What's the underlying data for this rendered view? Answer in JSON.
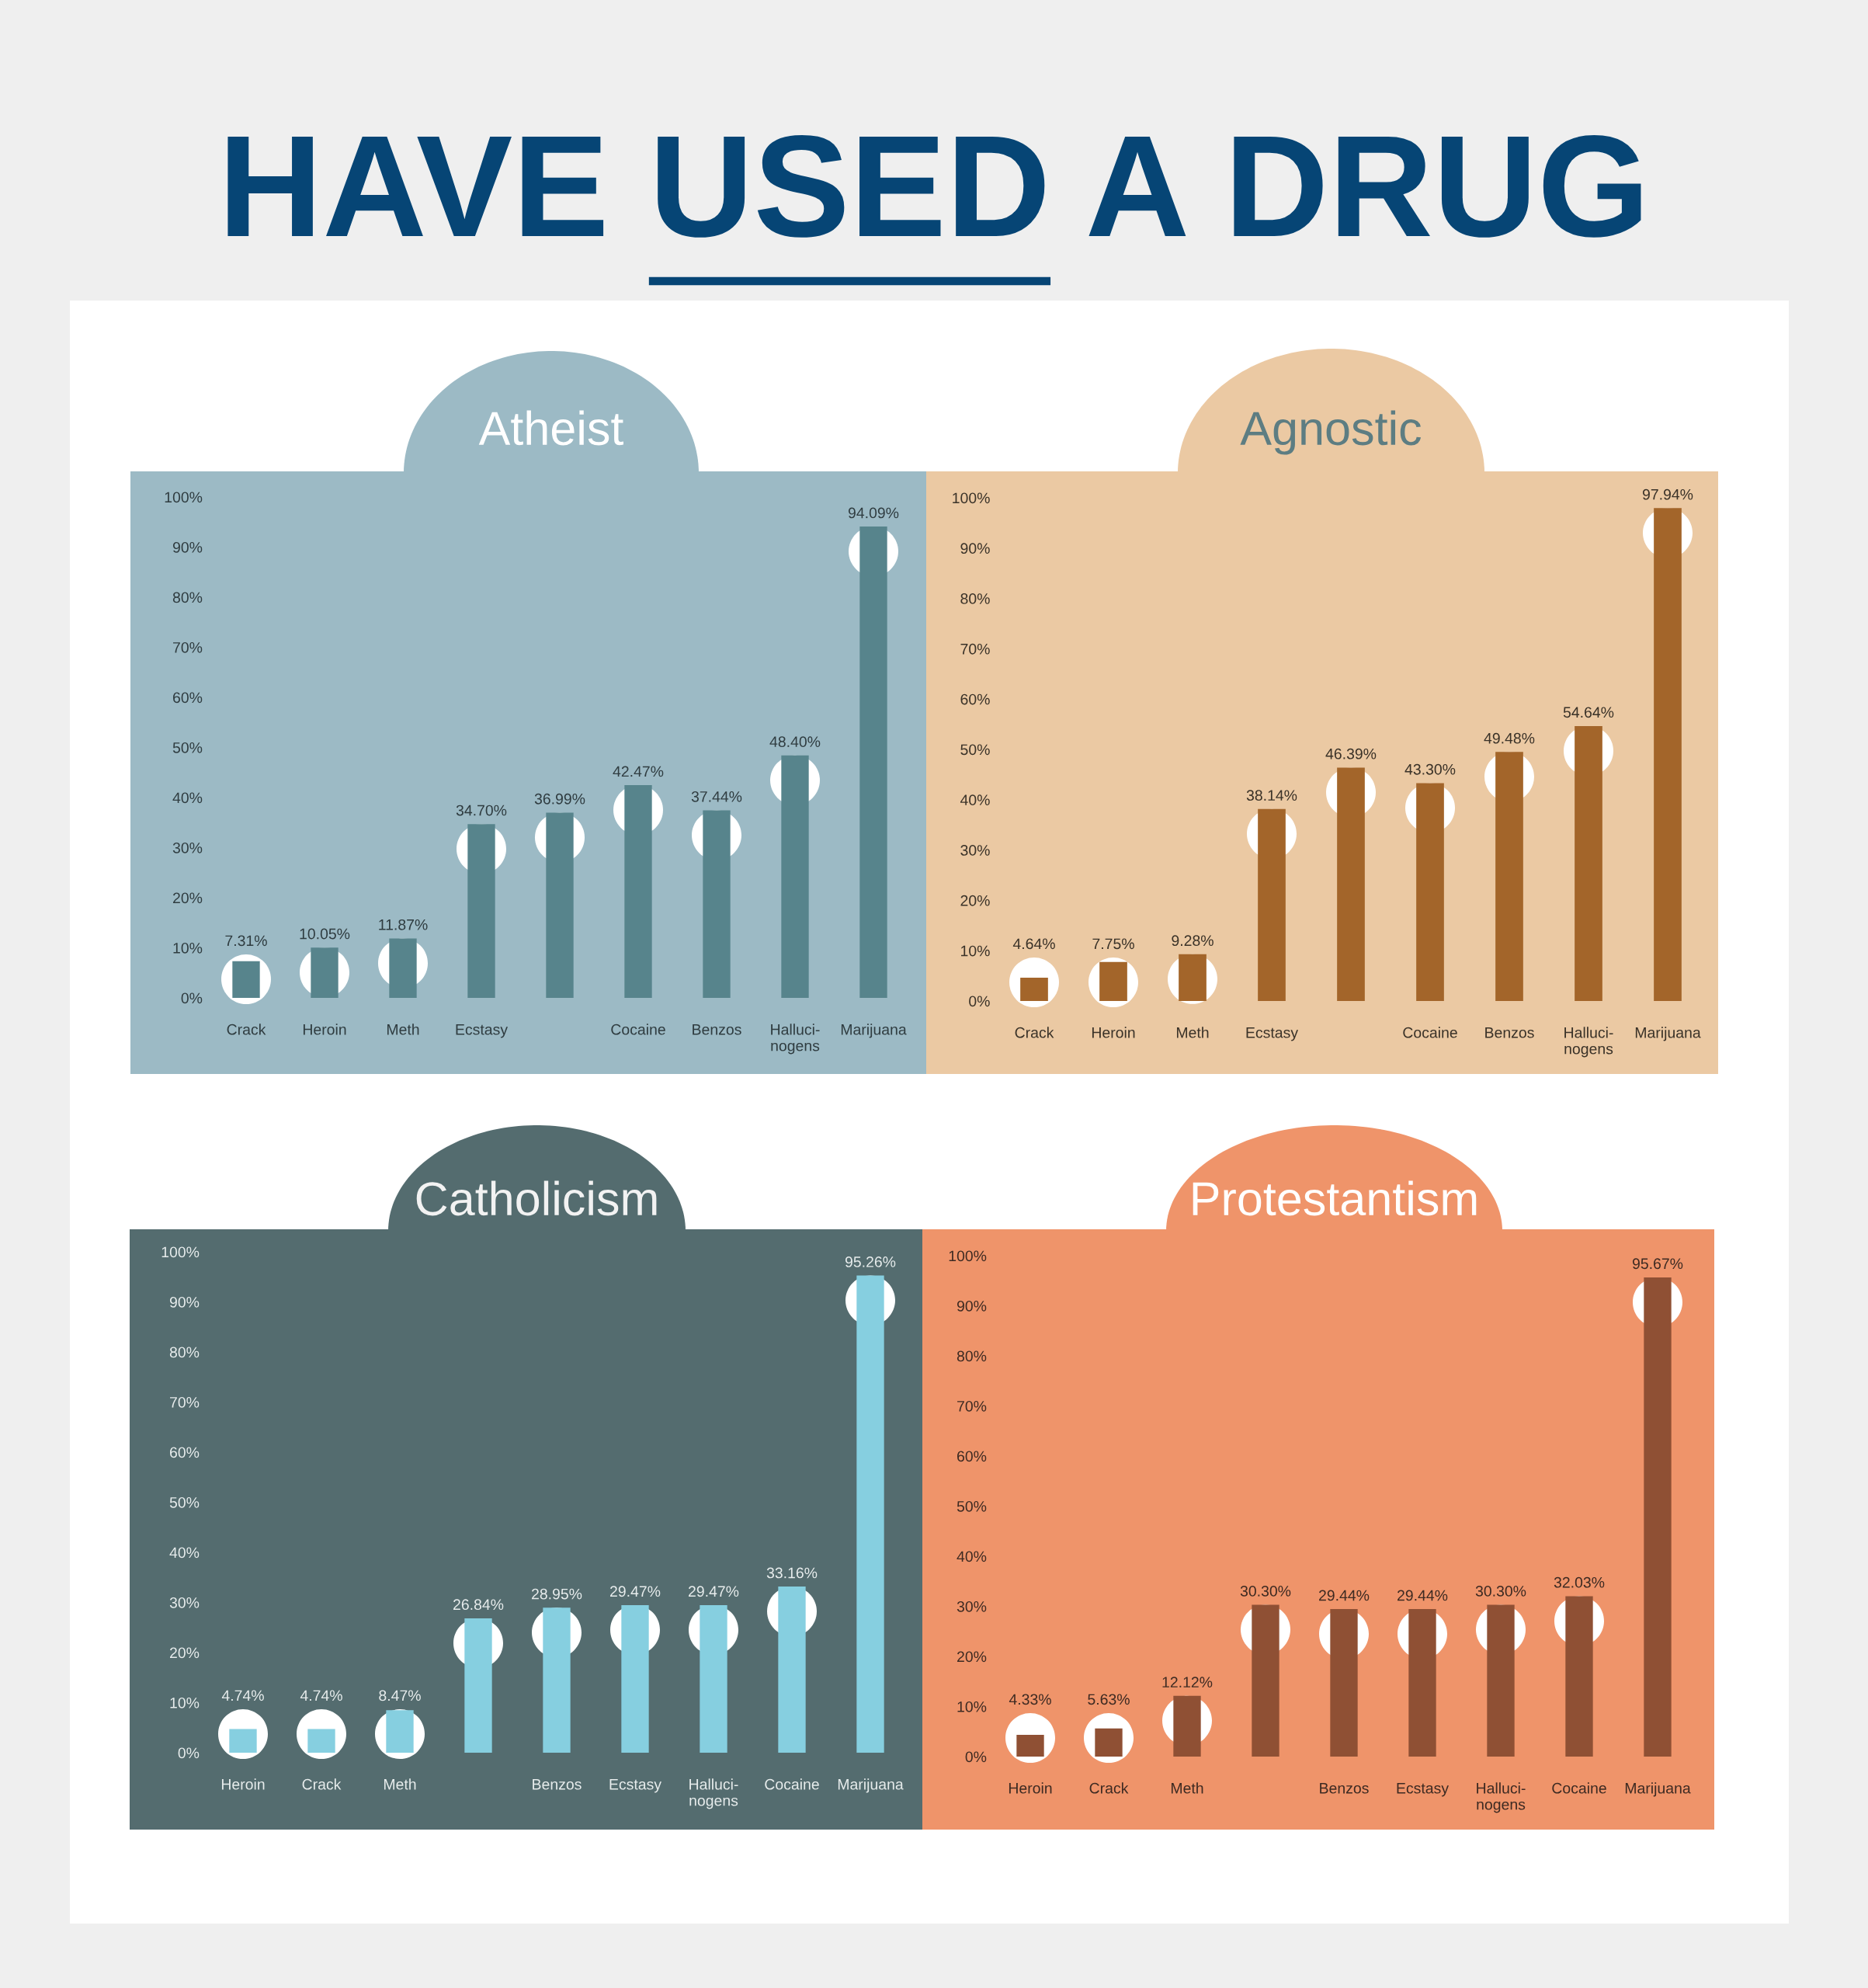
{
  "chart_data": [
    {
      "type": "bar",
      "title": "HAVE USED A DRUG",
      "subtitle": "Atheist",
      "categories": [
        "Crack",
        "Heroin",
        "Meth",
        "Ecstasy",
        null,
        "Cocaine",
        "Benzos",
        "Halluci-\nnogens",
        "Marijuana"
      ],
      "values": [
        7.31,
        10.05,
        11.87,
        34.7,
        36.99,
        42.47,
        37.44,
        48.4,
        94.09
      ],
      "value_labels": [
        "7.31%",
        "10.05%",
        "11.87%",
        "34.70%",
        "36.99%",
        "42.47%",
        "37.44%",
        "48.40%",
        "94.09%"
      ],
      "color": "#57848c",
      "ylim": [
        0,
        100
      ],
      "yticks": [
        {
          "value": 0,
          "label": "0%"
        },
        {
          "value": 10,
          "label": "10%"
        },
        {
          "value": 20,
          "label": "20%"
        },
        {
          "value": 30,
          "label": "30%"
        },
        {
          "value": 40,
          "label": "40%"
        },
        {
          "value": 50,
          "label": "50%"
        },
        {
          "value": 60,
          "label": "60%"
        },
        {
          "value": 70,
          "label": "70%"
        },
        {
          "value": 80,
          "label": "80%"
        },
        {
          "value": 90,
          "label": "90%"
        },
        {
          "value": 100,
          "label": "100%"
        }
      ]
    },
    {
      "type": "bar",
      "subtitle": "Agnostic",
      "categories": [
        "Crack",
        "Heroin",
        "Meth",
        "Ecstasy",
        null,
        "Cocaine",
        "Benzos",
        "Halluci-\nnogens",
        "Marijuana"
      ],
      "values": [
        4.64,
        7.75,
        9.28,
        38.14,
        46.39,
        43.3,
        49.48,
        54.64,
        97.94
      ],
      "value_labels": [
        "4.64%",
        "7.75%",
        "9.28%",
        "38.14%",
        "46.39%",
        "43.30%",
        "49.48%",
        "54.64%",
        "97.94%"
      ],
      "color": "#a3652a",
      "ylim": [
        0,
        100
      ],
      "yticks": [
        {
          "value": 0,
          "label": "0%"
        },
        {
          "value": 10,
          "label": "10%"
        },
        {
          "value": 20,
          "label": "20%"
        },
        {
          "value": 30,
          "label": "30%"
        },
        {
          "value": 40,
          "label": "40%"
        },
        {
          "value": 50,
          "label": "50%"
        },
        {
          "value": 60,
          "label": "60%"
        },
        {
          "value": 70,
          "label": "70%"
        },
        {
          "value": 80,
          "label": "80%"
        },
        {
          "value": 90,
          "label": "90%"
        },
        {
          "value": 100,
          "label": "100%"
        }
      ]
    },
    {
      "type": "bar",
      "subtitle": "Catholicism",
      "categories": [
        "Heroin",
        "Crack",
        "Meth",
        null,
        "Benzos",
        "Ecstasy",
        "Halluci-\nnogens",
        "Cocaine",
        "Marijuana"
      ],
      "values": [
        4.74,
        4.74,
        8.47,
        26.84,
        28.95,
        29.47,
        29.47,
        33.16,
        95.26
      ],
      "value_labels": [
        "4.74%",
        "4.74%",
        "8.47%",
        "26.84%",
        "28.95%",
        "29.47%",
        "29.47%",
        "33.16%",
        "95.26%"
      ],
      "color": "#86cfe0",
      "ylim": [
        0,
        100
      ],
      "yticks": [
        {
          "value": 0,
          "label": "0%"
        },
        {
          "value": 10,
          "label": "10%"
        },
        {
          "value": 20,
          "label": "20%"
        },
        {
          "value": 30,
          "label": "30%"
        },
        {
          "value": 40,
          "label": "40%"
        },
        {
          "value": 50,
          "label": "50%"
        },
        {
          "value": 60,
          "label": "60%"
        },
        {
          "value": 70,
          "label": "70%"
        },
        {
          "value": 80,
          "label": "80%"
        },
        {
          "value": 90,
          "label": "90%"
        },
        {
          "value": 100,
          "label": "100%"
        }
      ]
    },
    {
      "type": "bar",
      "subtitle": "Protestantism",
      "categories": [
        "Heroin",
        "Crack",
        "Meth",
        null,
        "Benzos",
        "Ecstasy",
        "Halluci-\nnogens",
        "Cocaine",
        "Marijuana"
      ],
      "values": [
        4.33,
        5.63,
        12.12,
        30.3,
        29.44,
        29.44,
        30.3,
        32.03,
        95.67
      ],
      "value_labels": [
        "4.33%",
        "5.63%",
        "12.12%",
        "30.30%",
        "29.44%",
        "29.44%",
        "30.30%",
        "32.03%",
        "95.67%"
      ],
      "color": "#8f5034",
      "ylim": [
        0,
        100
      ],
      "yticks": [
        {
          "value": 0,
          "label": "0%"
        },
        {
          "value": 10,
          "label": "10%"
        },
        {
          "value": 20,
          "label": "20%"
        },
        {
          "value": 30,
          "label": "30%"
        },
        {
          "value": 40,
          "label": "40%"
        },
        {
          "value": 50,
          "label": "50%"
        },
        {
          "value": 60,
          "label": "60%"
        },
        {
          "value": 70,
          "label": "70%"
        },
        {
          "value": 80,
          "label": "80%"
        },
        {
          "value": 90,
          "label": "90%"
        },
        {
          "value": 100,
          "label": "100%"
        }
      ]
    }
  ]
}
